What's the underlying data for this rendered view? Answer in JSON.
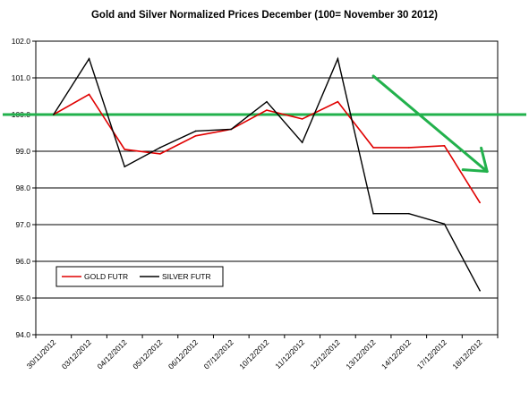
{
  "chart_data": {
    "type": "line",
    "title": "Gold and Silver Normalized Prices December (100= November 30 2012)",
    "categories": [
      "30/11/2012",
      "03/12/2012",
      "04/12/2012",
      "05/12/2012",
      "06/12/2012",
      "07/12/2012",
      "10/12/2012",
      "11/12/2012",
      "12/12/2012",
      "13/12/2012",
      "14/12/2012",
      "17/12/2012",
      "18/12/2012"
    ],
    "series": [
      {
        "name": "GOLD FUTR",
        "color": "#e00000",
        "values": [
          100.0,
          100.55,
          99.05,
          98.93,
          99.42,
          99.6,
          100.12,
          99.88,
          100.35,
          99.1,
          99.1,
          99.15,
          97.6
        ]
      },
      {
        "name": "SILVER FUTR",
        "color": "#000000",
        "values": [
          100.0,
          101.52,
          98.58,
          99.1,
          99.55,
          99.6,
          100.35,
          99.24,
          101.52,
          97.3,
          97.3,
          97.02,
          95.2
        ]
      }
    ],
    "ylim": [
      94.0,
      102.0
    ],
    "yticks": [
      "94.0",
      "95.0",
      "96.0",
      "97.0",
      "98.0",
      "99.0",
      "100.0",
      "101.0",
      "102.0"
    ],
    "reference_line": {
      "value": 100.0,
      "color": "#22b14c"
    },
    "annotation_arrow": {
      "color": "#22b14c",
      "from": {
        "x": "13/12/2012",
        "y": 101.05
      },
      "to": {
        "x": "18/12/2012",
        "y": 98.45
      }
    },
    "grid": true,
    "legend": "bottom-left"
  }
}
